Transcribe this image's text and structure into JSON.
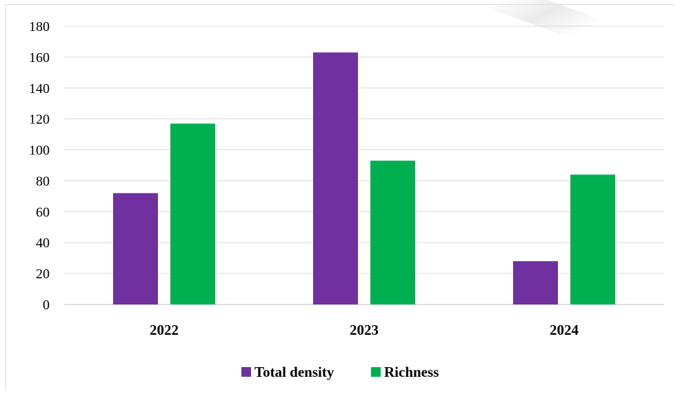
{
  "chart_data": {
    "type": "bar",
    "categories": [
      "2022",
      "2023",
      "2024"
    ],
    "series": [
      {
        "name": "Total density",
        "values": [
          72,
          163,
          28
        ],
        "color": "#7030a0"
      },
      {
        "name": "Richness",
        "values": [
          117,
          93,
          84
        ],
        "color": "#00b050"
      }
    ],
    "ylim": [
      0,
      180
    ],
    "yticks": [
      "0",
      "20",
      "40",
      "60",
      "80",
      "100",
      "120",
      "140",
      "160",
      "180"
    ],
    "grid": true,
    "legend_position": "bottom"
  }
}
